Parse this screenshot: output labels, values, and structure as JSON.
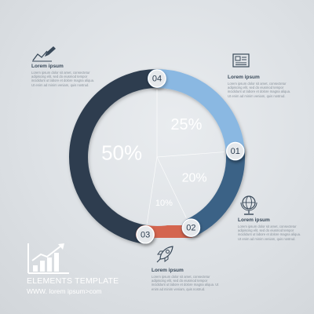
{
  "chart_data": {
    "type": "pie",
    "slices": [
      {
        "label": "01",
        "value": 25,
        "value_label": "25%",
        "color": "#8ab8e2"
      },
      {
        "label": "02",
        "value": 20,
        "value_label": "20%",
        "color": "#3b6286"
      },
      {
        "label": "03",
        "value": 10,
        "value_label": "10%",
        "color": "#d4654f"
      },
      {
        "label": "04",
        "value": 50,
        "value_label": "50%",
        "color": "#2d3e50"
      }
    ]
  },
  "info_blocks": [
    {
      "id": "04",
      "icon": "chart-pen-icon",
      "title": "Lorem ipsum",
      "body": "Lorem ipsum dolor sit amet, consectetur adipiscing elit, sed do eiusmod tempor incididunt ut labore et dolore magna aliqua. Ut enim ad minim veniam, quis nostrud."
    },
    {
      "id": "01",
      "icon": "newspaper-icon",
      "title": "Lorem ipsum",
      "body": "Lorem ipsum dolor sit amet, consectetur adipiscing elit, sed do eiusmod tempor incididunt ut labore et dolore magna aliqua. Ut enim ad minim veniam, quis nostrud."
    },
    {
      "id": "02",
      "icon": "globe-icon",
      "title": "Lorem ipsum",
      "body": "Lorem ipsum dolor sit amet, consectetur adipiscing elit, sed do eiusmod tempor incididunt ut labore et dolore magna aliqua. Ut enim ad minim veniam, quis nostrud."
    },
    {
      "id": "03",
      "icon": "rocket-icon",
      "title": "Lorem ipsum",
      "body": "Lorem ipsum dolor sit amet, consectetur adipiscing elit, sed do eiusmod tempor incididunt ut labore et dolore magna aliqua. Ut enim ad minim veniam, quis nostrud."
    }
  ],
  "footer": {
    "title": "ELEMENTS TEMPLATE",
    "url": "WWW. lorem ipsum>com",
    "icon": "growth-chart-icon"
  },
  "colors": {
    "background": "#dde1e5",
    "badge_fill": "#e6e9ec",
    "badge_text": "#2d3e50",
    "footer_text": "#ffffff",
    "icon_stroke": "#3a4a5a"
  }
}
